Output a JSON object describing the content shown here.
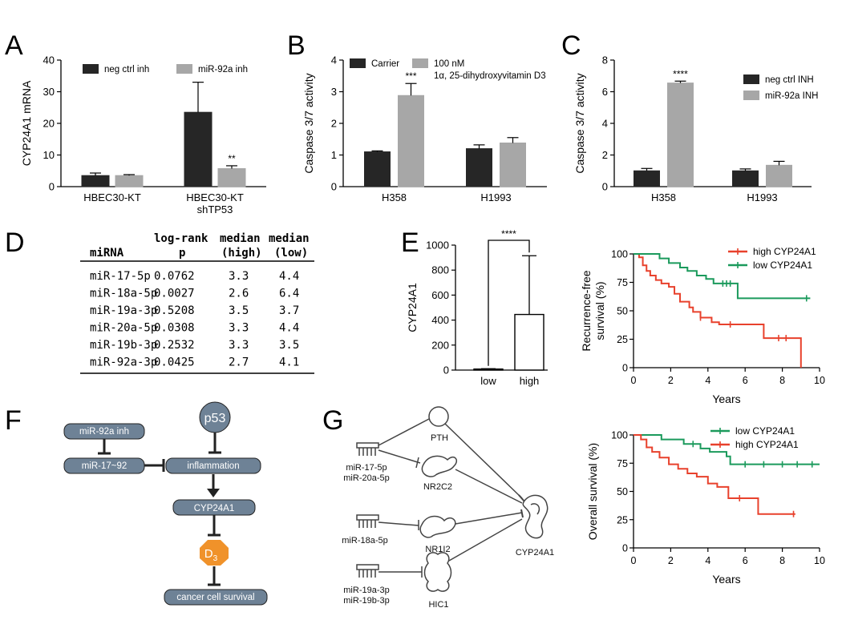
{
  "panels": {
    "A": "A",
    "B": "B",
    "C": "C",
    "D": "D",
    "E": "E",
    "F": "F",
    "G": "G"
  },
  "colors": {
    "dark": "#262626",
    "gray": "#a7a7a7",
    "red": "#e8412c",
    "green": "#1b9a5c",
    "node": "#6e8296",
    "d3": "#f0922a"
  },
  "chart_data": [
    {
      "id": "A",
      "type": "bar",
      "ylabel": "CYP24A1 mRNA",
      "ylim": [
        0,
        40
      ],
      "yticks": [
        0,
        10,
        20,
        30,
        40
      ],
      "categories": [
        "HBEC30-KT",
        "HBEC30-KT shTP53"
      ],
      "category_lines": [
        [
          "HBEC30-KT"
        ],
        [
          "HBEC30-KT",
          "shTP53"
        ]
      ],
      "series": [
        {
          "name": "neg ctrl inh",
          "values": [
            3.5,
            23.5
          ],
          "errors": [
            0.8,
            9.5
          ]
        },
        {
          "name": "miR-92a inh",
          "values": [
            3.5,
            5.7
          ],
          "errors": [
            0.3,
            0.9
          ]
        }
      ],
      "annotations": [
        {
          "series": 1,
          "category": 1,
          "text": "**"
        }
      ]
    },
    {
      "id": "B",
      "type": "bar",
      "ylabel": "Caspase 3/7 activity",
      "ylim": [
        0,
        4
      ],
      "yticks": [
        0,
        1,
        2,
        3,
        4
      ],
      "categories": [
        "H358",
        "H1993"
      ],
      "category_lines": [
        [
          "H358"
        ],
        [
          "H1993"
        ]
      ],
      "series": [
        {
          "name": "Carrier",
          "values": [
            1.1,
            1.2
          ],
          "errors": [
            0.03,
            0.12
          ]
        },
        {
          "name": "100 nM",
          "name2": "1α, 25-dihydroxyvitamin D3",
          "values": [
            2.88,
            1.38
          ],
          "errors": [
            0.38,
            0.17
          ]
        }
      ],
      "annotations": [
        {
          "series": 1,
          "category": 0,
          "text": "***"
        }
      ]
    },
    {
      "id": "C",
      "type": "bar",
      "ylabel": "Caspase 3/7 activity",
      "ylim": [
        0,
        8
      ],
      "yticks": [
        0,
        2,
        4,
        6,
        8
      ],
      "categories": [
        "H358",
        "H1993"
      ],
      "category_lines": [
        [
          "H358"
        ],
        [
          "H1993"
        ]
      ],
      "series": [
        {
          "name": "neg ctrl INH",
          "values": [
            1.0,
            1.0
          ],
          "errors": [
            0.15,
            0.12
          ]
        },
        {
          "name": "miR-92a INH",
          "values": [
            6.55,
            1.35
          ],
          "errors": [
            0.12,
            0.25
          ]
        }
      ],
      "annotations": [
        {
          "series": 1,
          "category": 0,
          "text": "****"
        }
      ]
    },
    {
      "id": "E",
      "type": "bar",
      "ylabel": "CYP24A1",
      "ylim": [
        0,
        1000
      ],
      "yticks": [
        0,
        200,
        400,
        600,
        800,
        1000
      ],
      "categories": [
        "low",
        "high"
      ],
      "values": [
        8,
        445
      ],
      "errors": [
        3,
        470
      ],
      "significance": "****"
    },
    {
      "id": "E-rfs",
      "type": "line",
      "ylabel": "Recurrence-free survival (%)",
      "ylabel_lines": [
        "Recurrence-free",
        "survival (%)"
      ],
      "xlabel": "Years",
      "xlim": [
        0,
        10
      ],
      "ylim": [
        0,
        100
      ],
      "xticks": [
        0,
        2,
        4,
        6,
        8,
        10
      ],
      "yticks": [
        0,
        25,
        50,
        75,
        100
      ],
      "series": [
        {
          "name": "high CYP24A1",
          "color": "red",
          "steps": [
            [
              0,
              100
            ],
            [
              0.3,
              97
            ],
            [
              0.5,
              90
            ],
            [
              0.7,
              85
            ],
            [
              0.9,
              81
            ],
            [
              1.2,
              77
            ],
            [
              1.5,
              74
            ],
            [
              1.9,
              71
            ],
            [
              2.2,
              65
            ],
            [
              2.5,
              58
            ],
            [
              3.0,
              53
            ],
            [
              3.2,
              49
            ],
            [
              3.6,
              44
            ],
            [
              4.2,
              40
            ],
            [
              4.6,
              38
            ],
            [
              5.2,
              38
            ],
            [
              7.0,
              26
            ],
            [
              8.4,
              26
            ],
            [
              9.0,
              0
            ]
          ],
          "censors": [
            [
              3.6,
              44
            ],
            [
              5.2,
              38
            ],
            [
              7.8,
              26
            ],
            [
              8.2,
              26
            ]
          ]
        },
        {
          "name": "low CYP24A1",
          "color": "green",
          "steps": [
            [
              0,
              100
            ],
            [
              1.4,
              96
            ],
            [
              1.9,
              92
            ],
            [
              2.5,
              88
            ],
            [
              2.9,
              85
            ],
            [
              3.4,
              81
            ],
            [
              3.9,
              78
            ],
            [
              4.3,
              74
            ],
            [
              5.6,
              74
            ],
            [
              5.6,
              61
            ],
            [
              9.5,
              61
            ]
          ],
          "censors": [
            [
              4.8,
              74
            ],
            [
              5.0,
              74
            ],
            [
              5.2,
              74
            ],
            [
              9.3,
              61
            ]
          ]
        }
      ]
    },
    {
      "id": "E-os",
      "type": "line",
      "ylabel": "Overall survival (%)",
      "xlabel": "Years",
      "xlim": [
        0,
        10
      ],
      "ylim": [
        0,
        100
      ],
      "xticks": [
        0,
        2,
        4,
        6,
        8,
        10
      ],
      "yticks": [
        0,
        25,
        50,
        75,
        100
      ],
      "series": [
        {
          "name": "low CYP24A1",
          "color": "green",
          "steps": [
            [
              0,
              100
            ],
            [
              1.5,
              96
            ],
            [
              2.7,
              92
            ],
            [
              3.6,
              88
            ],
            [
              4.1,
              85
            ],
            [
              5.0,
              81
            ],
            [
              5.2,
              74
            ],
            [
              10,
              74
            ]
          ],
          "censors": [
            [
              3.2,
              92
            ],
            [
              6.0,
              74
            ],
            [
              7.0,
              74
            ],
            [
              8.0,
              74
            ],
            [
              8.8,
              74
            ],
            [
              9.6,
              74
            ]
          ]
        },
        {
          "name": "high CYP24A1",
          "color": "red",
          "steps": [
            [
              0,
              100
            ],
            [
              0.4,
              96
            ],
            [
              0.7,
              89
            ],
            [
              1.0,
              85
            ],
            [
              1.4,
              80
            ],
            [
              1.9,
              74
            ],
            [
              2.4,
              70
            ],
            [
              2.9,
              66
            ],
            [
              3.4,
              63
            ],
            [
              4.0,
              57
            ],
            [
              4.5,
              54
            ],
            [
              5.1,
              44
            ],
            [
              6.7,
              30
            ],
            [
              8.7,
              30
            ]
          ],
          "censors": [
            [
              5.7,
              44
            ],
            [
              8.6,
              30
            ]
          ]
        }
      ]
    }
  ],
  "table": {
    "headers": [
      [
        "miRNA"
      ],
      [
        "log-rank",
        "p"
      ],
      [
        "median",
        "(high)"
      ],
      [
        "median",
        "(low)"
      ]
    ],
    "rows": [
      [
        "miR-17-5p",
        "0.0762",
        "3.3",
        "4.4"
      ],
      [
        "miR-18a-5p",
        "0.0027",
        "2.6",
        "6.4"
      ],
      [
        "miR-19a-3p",
        "0.5208",
        "3.5",
        "3.7"
      ],
      [
        "miR-20a-5p",
        "0.0308",
        "3.3",
        "4.4"
      ],
      [
        "miR-19b-3p",
        "0.2532",
        "3.3",
        "3.5"
      ],
      [
        "miR-92a-3p",
        "0.0425",
        "2.7",
        "4.1"
      ]
    ]
  },
  "panelF": {
    "mir92a_inh": "miR-92a inh",
    "mir17_92": "miR-17~92",
    "p53": "p53",
    "inflammation": "inflammation",
    "cyp24a1": "CYP24A1",
    "d3": "D",
    "d3_sub": "3",
    "survival": "cancer cell survival"
  },
  "panelG": {
    "mir_a": [
      "miR-17-5p",
      "miR-20a-5p"
    ],
    "mir_b": [
      "miR-18a-5p"
    ],
    "mir_c": [
      "miR-19a-3p",
      "miR-19b-3p"
    ],
    "pth": "PTH",
    "nr2c2": "NR2C2",
    "nr1i2": "NR1I2",
    "hic1": "HIC1",
    "cyp24a1": "CYP24A1"
  }
}
